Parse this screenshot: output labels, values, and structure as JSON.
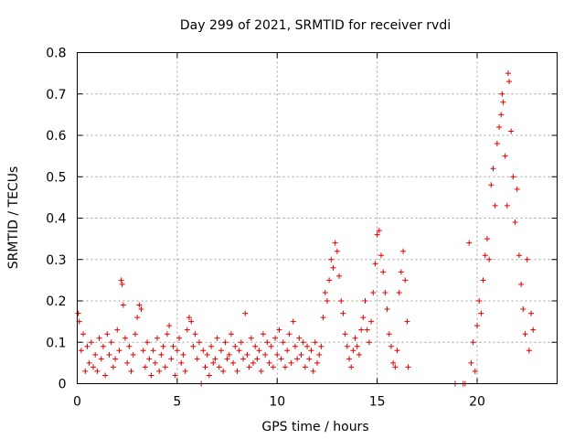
{
  "chart_data": {
    "type": "scatter",
    "title": "Day 299 of 2021, SRMTID for receiver rvdi",
    "xlabel": "GPS time / hours",
    "ylabel": "SRMTID / TECUs",
    "xlim": [
      0,
      24
    ],
    "ylim": [
      0,
      0.8
    ],
    "grid": true,
    "marker": "+",
    "color": "#e00000",
    "x_ticks": [
      0,
      5,
      10,
      15,
      20
    ],
    "x_tick_labels": [
      "0",
      "5",
      "10",
      "15",
      "20"
    ],
    "y_ticks": [
      0,
      0.1,
      0.2,
      0.3,
      0.4,
      0.5,
      0.6,
      0.7,
      0.8
    ],
    "y_tick_labels": [
      "0",
      "0.1",
      "0.2",
      "0.3",
      "0.4",
      "0.5",
      "0.6",
      "0.7",
      "0.8"
    ],
    "series": [
      {
        "name": "SRMTID",
        "points": [
          [
            0.05,
            0.17
          ],
          [
            0.1,
            0.15
          ],
          [
            0.2,
            0.08
          ],
          [
            0.3,
            0.12
          ],
          [
            0.4,
            0.03
          ],
          [
            0.5,
            0.09
          ],
          [
            0.6,
            0.05
          ],
          [
            0.7,
            0.1
          ],
          [
            0.8,
            0.04
          ],
          [
            0.9,
            0.07
          ],
          [
            1.0,
            0.03
          ],
          [
            1.1,
            0.11
          ],
          [
            1.2,
            0.06
          ],
          [
            1.3,
            0.09
          ],
          [
            1.4,
            0.02
          ],
          [
            1.5,
            0.12
          ],
          [
            1.6,
            0.07
          ],
          [
            1.7,
            0.1
          ],
          [
            1.8,
            0.04
          ],
          [
            1.9,
            0.06
          ],
          [
            2.0,
            0.13
          ],
          [
            2.1,
            0.08
          ],
          [
            2.2,
            0.25
          ],
          [
            2.25,
            0.24
          ],
          [
            2.3,
            0.19
          ],
          [
            2.4,
            0.11
          ],
          [
            2.5,
            0.05
          ],
          [
            2.6,
            0.09
          ],
          [
            2.7,
            0.03
          ],
          [
            2.8,
            0.07
          ],
          [
            2.9,
            0.12
          ],
          [
            3.0,
            0.16
          ],
          [
            3.1,
            0.19
          ],
          [
            3.2,
            0.18
          ],
          [
            3.3,
            0.08
          ],
          [
            3.4,
            0.04
          ],
          [
            3.5,
            0.1
          ],
          [
            3.6,
            0.06
          ],
          [
            3.7,
            0.02
          ],
          [
            3.8,
            0.08
          ],
          [
            3.9,
            0.05
          ],
          [
            4.0,
            0.11
          ],
          [
            4.1,
            0.03
          ],
          [
            4.2,
            0.07
          ],
          [
            4.3,
            0.09
          ],
          [
            4.4,
            0.04
          ],
          [
            4.5,
            0.12
          ],
          [
            4.6,
            0.14
          ],
          [
            4.7,
            0.06
          ],
          [
            4.8,
            0.09
          ],
          [
            4.9,
            0.02
          ],
          [
            5.0,
            0.08
          ],
          [
            5.1,
            0.11
          ],
          [
            5.2,
            0.05
          ],
          [
            5.3,
            0.07
          ],
          [
            5.4,
            0.03
          ],
          [
            5.5,
            0.13
          ],
          [
            5.6,
            0.16
          ],
          [
            5.7,
            0.15
          ],
          [
            5.8,
            0.09
          ],
          [
            5.9,
            0.12
          ],
          [
            6.0,
            0.06
          ],
          [
            6.1,
            0.1
          ],
          [
            6.2,
            0.0
          ],
          [
            6.3,
            0.08
          ],
          [
            6.4,
            0.04
          ],
          [
            6.5,
            0.07
          ],
          [
            6.6,
            0.02
          ],
          [
            6.7,
            0.09
          ],
          [
            6.8,
            0.05
          ],
          [
            6.9,
            0.06
          ],
          [
            7.0,
            0.11
          ],
          [
            7.1,
            0.04
          ],
          [
            7.2,
            0.08
          ],
          [
            7.3,
            0.03
          ],
          [
            7.4,
            0.1
          ],
          [
            7.5,
            0.06
          ],
          [
            7.6,
            0.07
          ],
          [
            7.7,
            0.12
          ],
          [
            7.8,
            0.05
          ],
          [
            7.9,
            0.09
          ],
          [
            8.0,
            0.03
          ],
          [
            8.1,
            0.08
          ],
          [
            8.2,
            0.1
          ],
          [
            8.3,
            0.06
          ],
          [
            8.4,
            0.17
          ],
          [
            8.5,
            0.07
          ],
          [
            8.6,
            0.04
          ],
          [
            8.7,
            0.11
          ],
          [
            8.8,
            0.05
          ],
          [
            8.9,
            0.09
          ],
          [
            9.0,
            0.06
          ],
          [
            9.1,
            0.08
          ],
          [
            9.2,
            0.03
          ],
          [
            9.3,
            0.12
          ],
          [
            9.4,
            0.07
          ],
          [
            9.5,
            0.1
          ],
          [
            9.6,
            0.05
          ],
          [
            9.7,
            0.09
          ],
          [
            9.8,
            0.04
          ],
          [
            9.9,
            0.11
          ],
          [
            10.0,
            0.07
          ],
          [
            10.1,
            0.13
          ],
          [
            10.2,
            0.06
          ],
          [
            10.3,
            0.1
          ],
          [
            10.4,
            0.04
          ],
          [
            10.5,
            0.08
          ],
          [
            10.6,
            0.12
          ],
          [
            10.7,
            0.05
          ],
          [
            10.8,
            0.15
          ],
          [
            10.9,
            0.09
          ],
          [
            11.0,
            0.06
          ],
          [
            11.1,
            0.11
          ],
          [
            11.2,
            0.07
          ],
          [
            11.3,
            0.1
          ],
          [
            11.4,
            0.04
          ],
          [
            11.5,
            0.09
          ],
          [
            11.6,
            0.06
          ],
          [
            11.7,
            0.08
          ],
          [
            11.8,
            0.03
          ],
          [
            11.9,
            0.1
          ],
          [
            12.0,
            0.05
          ],
          [
            12.1,
            0.07
          ],
          [
            12.2,
            0.09
          ],
          [
            12.3,
            0.16
          ],
          [
            12.4,
            0.22
          ],
          [
            12.5,
            0.2
          ],
          [
            12.6,
            0.25
          ],
          [
            12.7,
            0.3
          ],
          [
            12.8,
            0.28
          ],
          [
            12.9,
            0.34
          ],
          [
            13.0,
            0.32
          ],
          [
            13.1,
            0.26
          ],
          [
            13.2,
            0.2
          ],
          [
            13.3,
            0.17
          ],
          [
            13.4,
            0.12
          ],
          [
            13.5,
            0.09
          ],
          [
            13.6,
            0.06
          ],
          [
            13.7,
            0.04
          ],
          [
            13.8,
            0.08
          ],
          [
            13.9,
            0.11
          ],
          [
            14.0,
            0.09
          ],
          [
            14.1,
            0.07
          ],
          [
            14.2,
            0.13
          ],
          [
            14.3,
            0.16
          ],
          [
            14.4,
            0.2
          ],
          [
            14.5,
            0.13
          ],
          [
            14.6,
            0.1
          ],
          [
            14.7,
            0.15
          ],
          [
            14.8,
            0.22
          ],
          [
            14.9,
            0.29
          ],
          [
            15.0,
            0.36
          ],
          [
            15.1,
            0.37
          ],
          [
            15.2,
            0.31
          ],
          [
            15.3,
            0.27
          ],
          [
            15.4,
            0.22
          ],
          [
            15.5,
            0.18
          ],
          [
            15.6,
            0.12
          ],
          [
            15.7,
            0.09
          ],
          [
            15.8,
            0.05
          ],
          [
            15.9,
            0.04
          ],
          [
            16.0,
            0.08
          ],
          [
            16.1,
            0.22
          ],
          [
            16.2,
            0.27
          ],
          [
            16.3,
            0.32
          ],
          [
            16.4,
            0.25
          ],
          [
            16.5,
            0.15
          ],
          [
            16.55,
            0.04
          ],
          [
            18.9,
            0.0
          ],
          [
            19.3,
            0.0
          ],
          [
            19.4,
            0.0
          ],
          [
            19.6,
            0.34
          ],
          [
            19.7,
            0.05
          ],
          [
            19.8,
            0.1
          ],
          [
            19.9,
            0.03
          ],
          [
            20.0,
            0.14
          ],
          [
            20.1,
            0.2
          ],
          [
            20.2,
            0.17
          ],
          [
            20.3,
            0.25
          ],
          [
            20.4,
            0.31
          ],
          [
            20.5,
            0.35
          ],
          [
            20.6,
            0.3
          ],
          [
            20.7,
            0.48
          ],
          [
            20.8,
            0.52
          ],
          [
            20.9,
            0.43
          ],
          [
            21.0,
            0.58
          ],
          [
            21.1,
            0.62
          ],
          [
            21.2,
            0.65
          ],
          [
            21.25,
            0.7
          ],
          [
            21.3,
            0.68
          ],
          [
            21.4,
            0.55
          ],
          [
            21.5,
            0.43
          ],
          [
            21.55,
            0.75
          ],
          [
            21.6,
            0.73
          ],
          [
            21.7,
            0.61
          ],
          [
            21.8,
            0.5
          ],
          [
            21.9,
            0.39
          ],
          [
            22.0,
            0.47
          ],
          [
            22.1,
            0.31
          ],
          [
            22.2,
            0.24
          ],
          [
            22.3,
            0.18
          ],
          [
            22.4,
            0.12
          ],
          [
            22.5,
            0.3
          ],
          [
            22.6,
            0.08
          ],
          [
            22.7,
            0.17
          ],
          [
            22.8,
            0.13
          ]
        ]
      }
    ]
  }
}
